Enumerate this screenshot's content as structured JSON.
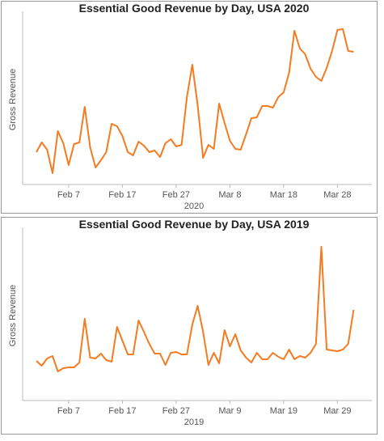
{
  "chart_data": [
    {
      "type": "line",
      "title": "Essential Good Revenue by Day, USA 2020",
      "x_label": "2020",
      "y_label": "Gross Revenue",
      "categories": [
        null,
        null,
        null,
        null,
        null,
        null,
        "Feb 7",
        null,
        null,
        null,
        null,
        null,
        null,
        null,
        null,
        null,
        "Feb 17",
        null,
        null,
        null,
        null,
        null,
        null,
        null,
        null,
        null,
        "Feb 27",
        null,
        null,
        null,
        null,
        null,
        null,
        null,
        null,
        null,
        "Mar 8",
        null,
        null,
        null,
        null,
        null,
        null,
        null,
        null,
        null,
        "Mar 18",
        null,
        null,
        null,
        null,
        null,
        null,
        null,
        null,
        null,
        "Mar 28",
        null,
        null,
        null
      ],
      "series": [
        {
          "color": "#f47b20",
          "values": [
            40,
            52,
            43,
            14,
            66,
            51,
            24,
            50,
            52,
            96,
            46,
            21,
            30,
            40,
            75,
            72,
            60,
            40,
            36,
            53,
            48,
            40,
            42,
            34,
            51,
            56,
            47,
            49,
            108,
            148,
            98,
            33,
            49,
            44,
            100,
            76,
            54,
            44,
            43,
            62,
            82,
            83,
            97,
            97,
            95,
            108,
            114,
            138,
            190,
            168,
            161,
            143,
            133,
            128,
            144,
            165,
            191,
            192,
            165,
            164
          ]
        }
      ],
      "ylim": [
        0,
        210
      ]
    },
    {
      "type": "line",
      "title": "Essential Good Revenue by Day, USA 2019",
      "x_label": "2019",
      "y_label": "Gross Revenue",
      "categories": [
        null,
        null,
        null,
        null,
        null,
        null,
        "Feb 7",
        null,
        null,
        null,
        null,
        null,
        null,
        null,
        null,
        null,
        "Feb 17",
        null,
        null,
        null,
        null,
        null,
        null,
        null,
        null,
        null,
        "Feb 27",
        null,
        null,
        null,
        null,
        null,
        null,
        null,
        null,
        null,
        "Mar 9",
        null,
        null,
        null,
        null,
        null,
        null,
        null,
        null,
        null,
        "Mar 19",
        null,
        null,
        null,
        null,
        null,
        null,
        null,
        null,
        null,
        "Mar 29",
        null,
        null,
        null
      ],
      "series": [
        {
          "color": "#f47b20",
          "values": [
            49,
            43,
            52,
            55,
            36,
            40,
            41,
            41,
            47,
            101,
            53,
            52,
            58,
            50,
            48,
            91,
            74,
            57,
            57,
            99,
            85,
            70,
            58,
            58,
            44,
            59,
            60,
            57,
            57,
            94,
            117,
            85,
            44,
            59,
            46,
            87,
            67,
            82,
            62,
            53,
            47,
            59,
            51,
            51,
            59,
            54,
            51,
            63,
            51,
            55,
            53,
            59,
            70,
            190,
            63,
            62,
            61,
            63,
            70,
            112
          ]
        }
      ],
      "ylim": [
        0,
        210
      ]
    }
  ]
}
